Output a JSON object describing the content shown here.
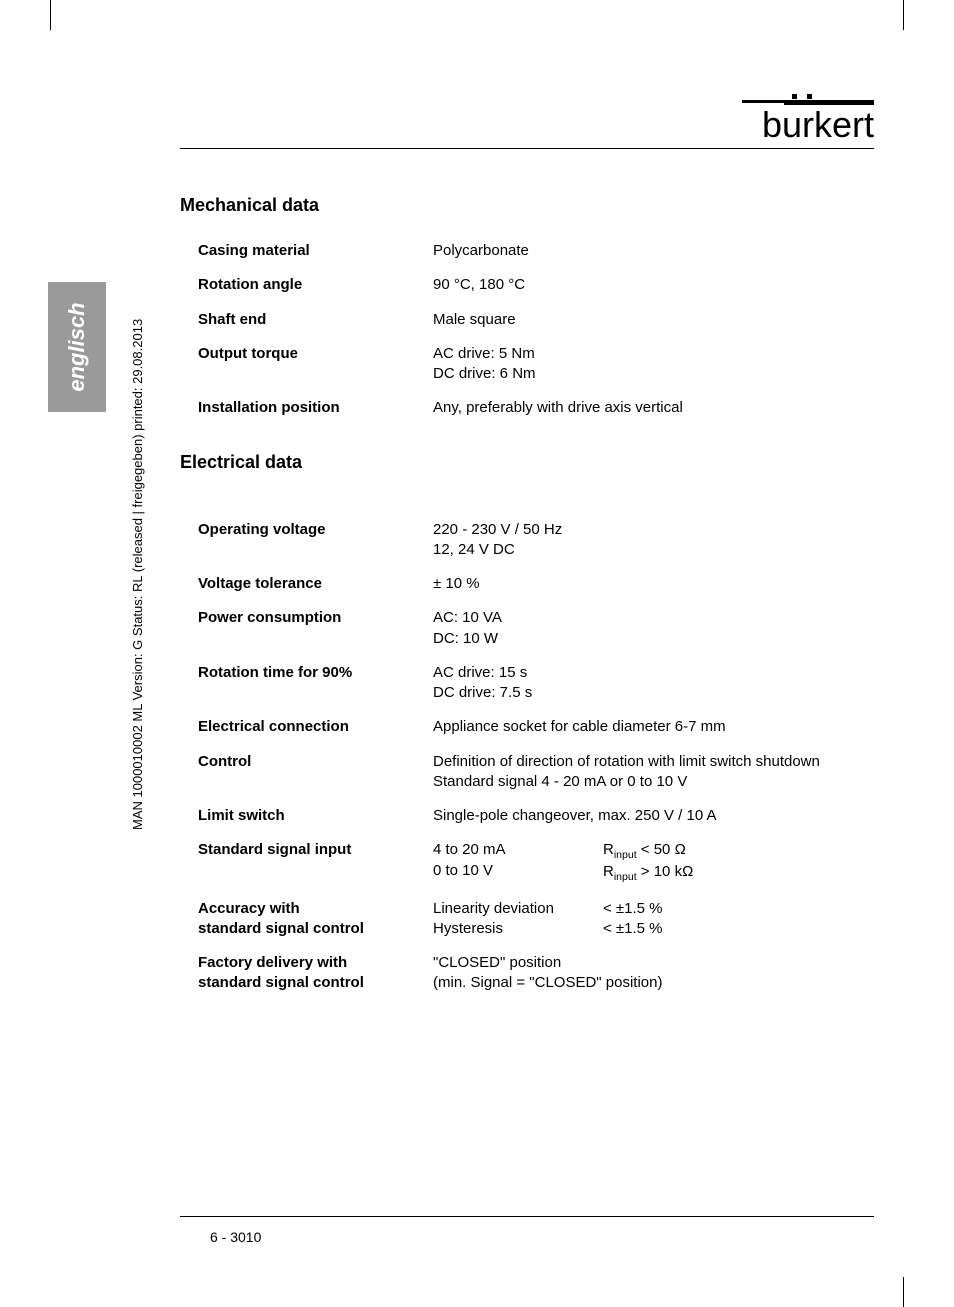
{
  "logo": "burkert",
  "sidebar_language": "englisch",
  "doc_id": "MAN 1000010002 ML  Version: G  Status: RL (released | freigegeben)  printed: 29.08.2013",
  "footer": "6  - 3010",
  "sections": {
    "mechanical": {
      "title": "Mechanical data",
      "rows": {
        "casing": {
          "label": "Casing material",
          "value": "Polycarbonate"
        },
        "rotation": {
          "label": "Rotation angle",
          "value": "90 °C, 180 °C"
        },
        "shaft": {
          "label": "Shaft end",
          "value": "Male square"
        },
        "torque": {
          "label": "Output torque",
          "value": "AC drive: 5 Nm\nDC drive: 6 Nm"
        },
        "install": {
          "label": "Installation position",
          "value": "Any, preferably with drive axis vertical"
        }
      }
    },
    "electrical": {
      "title": "Electrical data",
      "rows": {
        "opvolt": {
          "label": "Operating voltage",
          "value": "220 - 230 V / 50 Hz\n12, 24 V DC"
        },
        "vtol": {
          "label": "Voltage tolerance",
          "value": "± 10 %"
        },
        "power": {
          "label": "Power consumption",
          "value": "AC: 10 VA\nDC: 10 W"
        },
        "rottime": {
          "label": "Rotation time for 90%",
          "value": "AC drive: 15 s\nDC drive: 7.5 s"
        },
        "econn": {
          "label": "Electrical connection",
          "value": "Appliance socket for cable diameter 6-7 mm"
        },
        "control": {
          "label": "Control",
          "value": "Definition of direction of rotation with limit switch shutdown\nStandard signal 4 - 20 mA or 0 to 10 V"
        },
        "limit": {
          "label": "Limit switch",
          "value": "Single-pole changeover, max. 250 V / 10 A"
        },
        "ssi": {
          "label": "Standard signal input",
          "col1_a": "4 to 20 mA",
          "col1_b": "0 to 10 V",
          "col2_a_pre": "R",
          "col2_a_sub": "input",
          "col2_a_post": " < 50 Ω",
          "col2_b_pre": "R",
          "col2_b_sub": "input",
          "col2_b_post": " > 10 kΩ"
        },
        "accuracy": {
          "label": "Accuracy with\nstandard signal control",
          "col1_a": "Linearity deviation",
          "col1_b": "Hysteresis",
          "col2_a": "<  ±1.5 %",
          "col2_b": "<  ±1.5 %"
        },
        "factory": {
          "label": "Factory delivery with\nstandard signal control",
          "value": "\"CLOSED\" position\n(min. Signal = \"CLOSED\" position)"
        }
      }
    }
  }
}
